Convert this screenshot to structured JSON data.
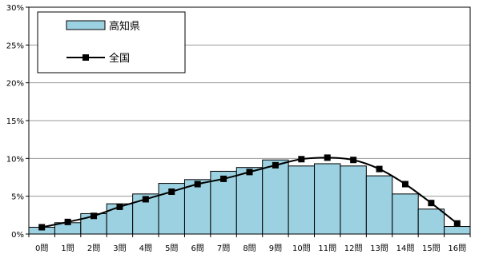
{
  "chart_data": {
    "type": "bar",
    "categories": [
      "0問",
      "1問",
      "2問",
      "3問",
      "4問",
      "5問",
      "6問",
      "7問",
      "8問",
      "9問",
      "10問",
      "11問",
      "12問",
      "13問",
      "14問",
      "15問",
      "16問"
    ],
    "series": [
      {
        "name": "高知県",
        "type": "bar",
        "values": [
          0.9,
          1.5,
          2.7,
          4.0,
          5.3,
          6.7,
          7.2,
          8.3,
          8.8,
          9.8,
          9.0,
          9.3,
          9.0,
          7.7,
          5.3,
          3.3,
          1.0
        ],
        "color": "#9bd1e0"
      },
      {
        "name": "全国",
        "type": "line",
        "values": [
          0.9,
          1.6,
          2.4,
          3.6,
          4.6,
          5.6,
          6.6,
          7.3,
          8.2,
          9.1,
          9.9,
          10.1,
          9.8,
          8.6,
          6.6,
          4.1,
          1.4
        ],
        "color": "#000000"
      }
    ],
    "yticks": [
      "0%",
      "5%",
      "10%",
      "15%",
      "20%",
      "25%",
      "30%"
    ],
    "ylim": [
      0,
      30
    ],
    "grid": true,
    "legend_position": "top-left"
  }
}
